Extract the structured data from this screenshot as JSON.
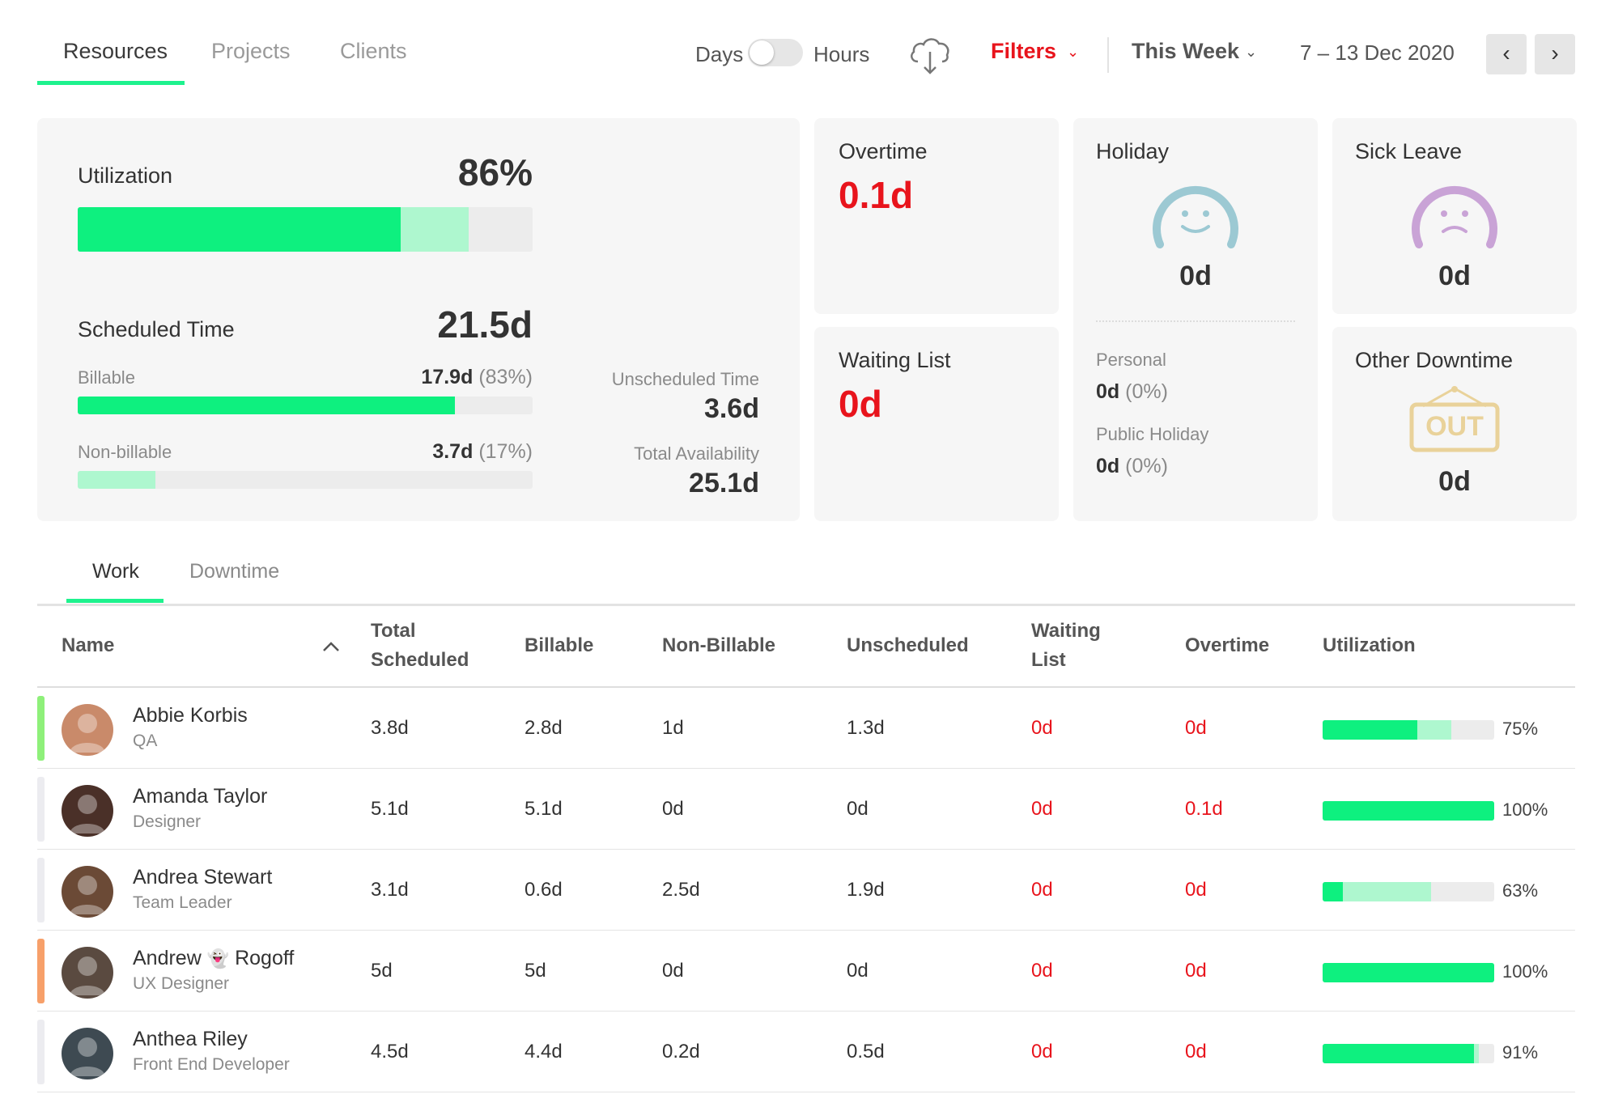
{
  "nav": {
    "tabs": [
      "Resources",
      "Projects",
      "Clients"
    ],
    "active_tab": "Resources",
    "toggle_left": "Days",
    "toggle_right": "Hours",
    "filters_label": "Filters",
    "period_label": "This Week",
    "date_range": "7 – 13 Dec 2020",
    "prev_icon": "chevron-left-icon",
    "next_icon": "chevron-right-icon",
    "download_icon": "cloud-download-icon"
  },
  "summary": {
    "utilization_label": "Utilization",
    "utilization_value": "86%",
    "utilization_billable_fraction": 0.71,
    "utilization_total_fraction": 0.86,
    "scheduled_label": "Scheduled Time",
    "scheduled_value": "21.5d",
    "billable_label": "Billable",
    "billable_value": "17.9d",
    "billable_pct": "(83%)",
    "billable_fraction": 0.83,
    "nonbillable_label": "Non-billable",
    "nonbillable_value": "3.7d",
    "nonbillable_pct": "(17%)",
    "nonbillable_fraction": 0.17,
    "unscheduled_label": "Unscheduled Time",
    "unscheduled_value": "3.6d",
    "availability_label": "Total Availability",
    "availability_value": "25.1d"
  },
  "cards": {
    "overtime_label": "Overtime",
    "overtime_value": "0.1d",
    "waiting_label": "Waiting List",
    "waiting_value": "0d",
    "holiday_label": "Holiday",
    "holiday_value": "0d",
    "personal_label": "Personal",
    "personal_value": "0d",
    "personal_pct": "(0%)",
    "public_label": "Public Holiday",
    "public_value": "0d",
    "public_pct": "(0%)",
    "sick_label": "Sick Leave",
    "sick_value": "0d",
    "other_label": "Other Downtime",
    "other_value": "0d",
    "out_sign_text": "OUT"
  },
  "subtabs": [
    "Work",
    "Downtime"
  ],
  "table": {
    "headers": {
      "name": "Name",
      "total_1": "Total",
      "total_2": "Scheduled",
      "billable": "Billable",
      "nonbillable": "Non-Billable",
      "unscheduled": "Unscheduled",
      "waiting_1": "Waiting",
      "waiting_2": "List",
      "overtime": "Overtime",
      "utilization": "Utilization"
    },
    "rows": [
      {
        "first": "Abbie Korbis",
        "last": "",
        "role": "QA",
        "total": "3.8d",
        "billable": "2.8d",
        "nonbillable": "1d",
        "unscheduled": "1.3d",
        "waiting": "0d",
        "overtime": "0d",
        "util": "75%",
        "util_billable": 0.55,
        "util_total": 0.75,
        "indicator": "#8ef07a",
        "avatar_color": "#c98a6a"
      },
      {
        "first": "Amanda Taylor",
        "last": "",
        "role": "Designer",
        "total": "5.1d",
        "billable": "5.1d",
        "nonbillable": "0d",
        "unscheduled": "0d",
        "waiting": "0d",
        "overtime": "0.1d",
        "util": "100%",
        "util_billable": 1.0,
        "util_total": 1.0,
        "indicator": "#ececf0",
        "avatar_color": "#4a3028"
      },
      {
        "first": "Andrea Stewart",
        "last": "",
        "role": "Team Leader",
        "total": "3.1d",
        "billable": "0.6d",
        "nonbillable": "2.5d",
        "unscheduled": "1.9d",
        "waiting": "0d",
        "overtime": "0d",
        "util": "63%",
        "util_billable": 0.12,
        "util_total": 0.63,
        "indicator": "#ececf0",
        "avatar_color": "#6b4a36"
      },
      {
        "first": "Andrew",
        "last": "Rogoff",
        "role": "UX Designer",
        "total": "5d",
        "billable": "5d",
        "nonbillable": "0d",
        "unscheduled": "0d",
        "waiting": "0d",
        "overtime": "0d",
        "util": "100%",
        "util_billable": 1.0,
        "util_total": 1.0,
        "indicator": "#f7a06a",
        "avatar_color": "#5a4a40",
        "emoji": "👻"
      },
      {
        "first": "Anthea Riley",
        "last": "",
        "role": "Front End Developer",
        "total": "4.5d",
        "billable": "4.4d",
        "nonbillable": "0.2d",
        "unscheduled": "0.5d",
        "waiting": "0d",
        "overtime": "0d",
        "util": "91%",
        "util_billable": 0.88,
        "util_total": 0.91,
        "indicator": "#ececf0",
        "avatar_color": "#3e4a52"
      }
    ]
  }
}
